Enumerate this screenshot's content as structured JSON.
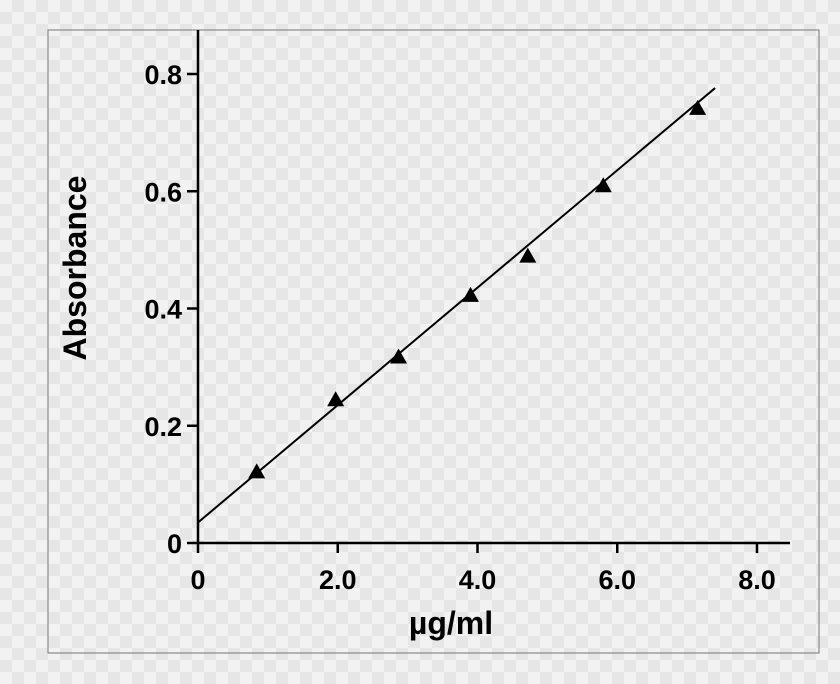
{
  "chart_data": {
    "type": "scatter",
    "title": "",
    "xlabel": "µg/ml",
    "ylabel": "Absorbance",
    "xlim": [
      0,
      8.0
    ],
    "ylim": [
      0,
      0.8
    ],
    "x_ticks": [
      "0",
      "2.0",
      "4.0",
      "6.0",
      "8.0"
    ],
    "y_ticks": [
      "0",
      "0.2",
      "0.4",
      "0.6",
      "0.8"
    ],
    "grid": false,
    "marker": "triangle",
    "colors": {
      "marker": "#000000",
      "line": "#000000",
      "axis": "#000000"
    },
    "series": [
      {
        "x": [
          0.84,
          1.97,
          2.87,
          3.9,
          4.72,
          5.8,
          7.15
        ],
        "y": [
          0.12,
          0.243,
          0.316,
          0.421,
          0.488,
          0.608,
          0.74
        ]
      }
    ],
    "trendline": {
      "x": [
        0,
        7.4
      ],
      "y": [
        0.035,
        0.776
      ]
    }
  }
}
